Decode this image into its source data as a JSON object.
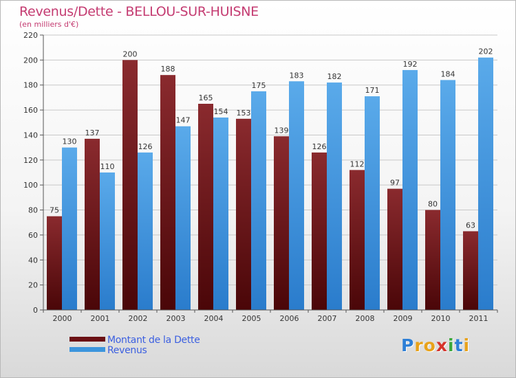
{
  "chart_data": {
    "type": "bar",
    "title": "Revenus/Dette - BELLOU-SUR-HUISNE",
    "subtitle": "(en milliers d'€)",
    "categories": [
      "2000",
      "2001",
      "2002",
      "2003",
      "2004",
      "2005",
      "2006",
      "2007",
      "2008",
      "2009",
      "2010",
      "2011"
    ],
    "series": [
      {
        "name": "Montant de la Dette",
        "color": "#7a1a1e",
        "values": [
          75,
          137,
          200,
          188,
          165,
          153,
          139,
          126,
          112,
          97,
          80,
          63
        ]
      },
      {
        "name": "Revenus",
        "color": "#3c95dd",
        "values": [
          130,
          110,
          126,
          147,
          154,
          175,
          183,
          182,
          171,
          192,
          184,
          202
        ]
      }
    ],
    "ylim": [
      0,
      220
    ],
    "yticks": [
      0,
      20,
      40,
      60,
      80,
      100,
      120,
      140,
      160,
      180,
      200,
      220
    ],
    "grid": true,
    "legend": "bottom-left",
    "xlabel": "",
    "ylabel": ""
  },
  "logo": {
    "letters": [
      "P",
      "r",
      "o",
      "x",
      "i",
      "t",
      "i"
    ],
    "colors": [
      "#2d7fd6",
      "#e8a21a",
      "#e8a21a",
      "#d6332b",
      "#3aa83a",
      "#2d7fd6",
      "#e8a21a"
    ]
  }
}
